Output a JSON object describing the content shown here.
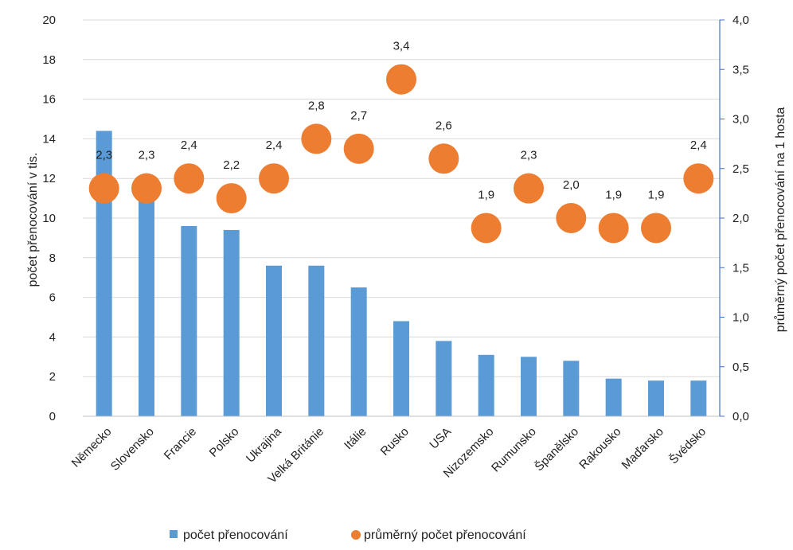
{
  "chart_data": {
    "type": "bar",
    "categories": [
      "Německo",
      "Slovensko",
      "Francie",
      "Polsko",
      "Ukrajina",
      "Velká Británie",
      "Itálie",
      "Rusko",
      "USA",
      "Nizozemsko",
      "Rumunsko",
      "Španělsko",
      "Rakousko",
      "Maďarsko",
      "Švédsko"
    ],
    "series": [
      {
        "name": "počet přenocování",
        "type": "bar",
        "axis": "left",
        "color": "#5b9bd5",
        "values": [
          14.4,
          11.1,
          9.6,
          9.4,
          7.6,
          7.6,
          6.5,
          4.8,
          3.8,
          3.1,
          3.0,
          2.8,
          1.9,
          1.8,
          1.8
        ]
      },
      {
        "name": "průměrný počet přenocování",
        "type": "scatter",
        "axis": "right",
        "color": "#ed7d31",
        "values": [
          2.3,
          2.3,
          2.4,
          2.2,
          2.4,
          2.8,
          2.7,
          3.4,
          2.6,
          1.9,
          2.3,
          2.0,
          1.9,
          1.9,
          2.4
        ],
        "labels": [
          "2,3",
          "2,3",
          "2,4",
          "2,2",
          "2,4",
          "2,8",
          "2,7",
          "3,4",
          "2,6",
          "1,9",
          "2,3",
          "2,0",
          "1,9",
          "1,9",
          "2,4"
        ]
      }
    ],
    "ylabel": "počet přenocování v tis.",
    "y2label": "průměrný počet přenocování na 1 hosta",
    "ylim": [
      0,
      20
    ],
    "y2lim": [
      0,
      4.0
    ],
    "yticks": [
      "0",
      "2",
      "4",
      "6",
      "8",
      "10",
      "12",
      "14",
      "16",
      "18",
      "20"
    ],
    "y2ticks": [
      "0,0",
      "0,5",
      "1,0",
      "1,5",
      "2,0",
      "2,5",
      "3,0",
      "3,5",
      "4,0"
    ],
    "grid": "horizontal",
    "legend": "bottom"
  }
}
